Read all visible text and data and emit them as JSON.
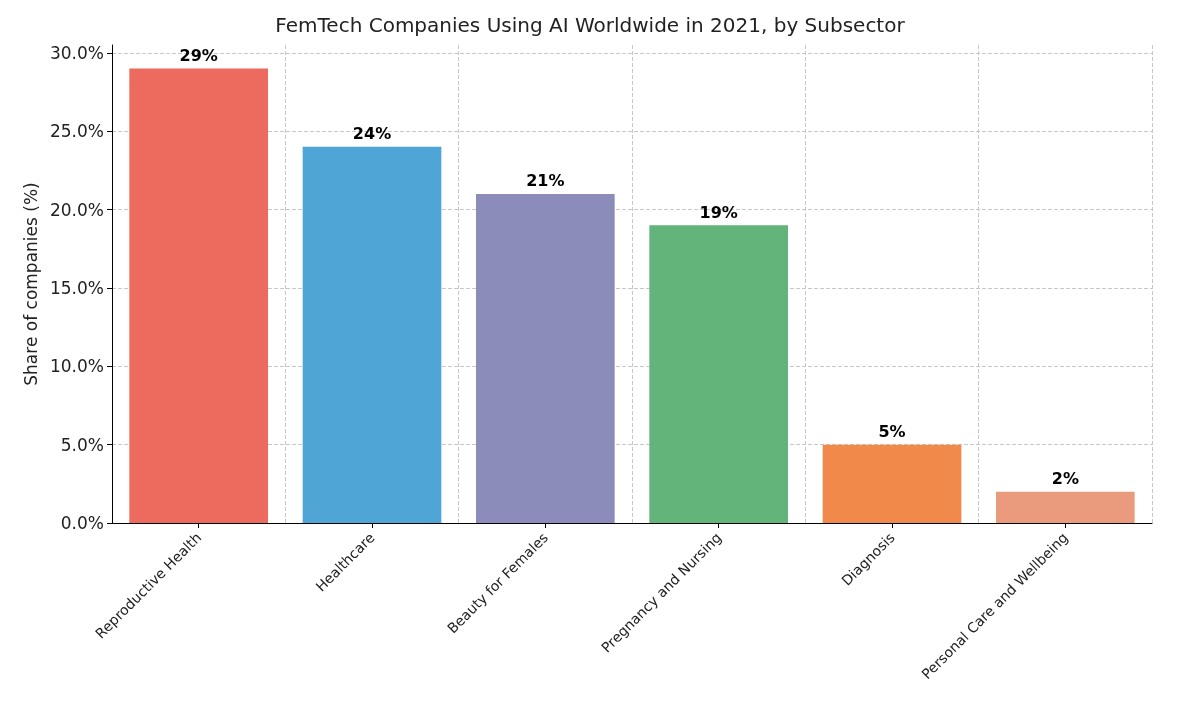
{
  "chart_data": {
    "type": "bar",
    "title": "FemTech Companies Using AI Worldwide in 2021, by Subsector",
    "ylabel": "Share of companies (%)",
    "categories": [
      "Reproductive Health",
      "Healthcare",
      "Beauty for Females",
      "Pregnancy and Nursing",
      "Diagnosis",
      "Personal Care and Wellbeing"
    ],
    "values": [
      29,
      24,
      21,
      19,
      5,
      2
    ],
    "value_labels": [
      "29%",
      "24%",
      "21%",
      "19%",
      "5%",
      "2%"
    ],
    "colors": [
      "#ec6a5e",
      "#4fa5d5",
      "#8c8cba",
      "#62b47a",
      "#f0894a",
      "#eb9b7d"
    ],
    "ylim": [
      0,
      30.5
    ],
    "yticks": [
      {
        "value": 0,
        "label": "0.0%"
      },
      {
        "value": 5,
        "label": "5.0%"
      },
      {
        "value": 10,
        "label": "10.0%"
      },
      {
        "value": 15,
        "label": "15.0%"
      },
      {
        "value": 20,
        "label": "20.0%"
      },
      {
        "value": 25,
        "label": "25.0%"
      },
      {
        "value": 30,
        "label": "30.0%"
      }
    ],
    "grid": true
  }
}
